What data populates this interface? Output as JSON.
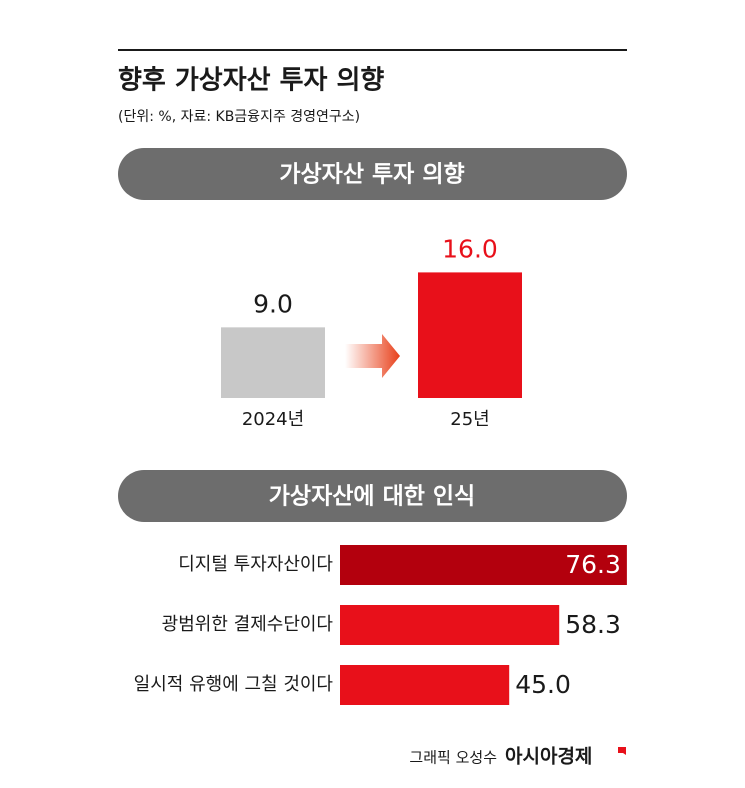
{
  "header": {
    "title": "향후 가상자산 투자 의향",
    "subtitle": "(단위: %, 자료: KB금융지주 경영연구소)"
  },
  "chart_data": [
    {
      "type": "bar",
      "title": "가상자산 투자 의향",
      "categories": [
        "2024년",
        "25년"
      ],
      "values": [
        9.0,
        16.0
      ],
      "value_labels": [
        "9.0",
        "16.0"
      ],
      "colors": [
        "#c8c8c8",
        "#e8101a"
      ],
      "value_label_colors": [
        "#1a1a1a",
        "#e8101a"
      ]
    },
    {
      "type": "hbar",
      "title": "가상자산에 대한 인식",
      "categories": [
        "디지털 투자자산이다",
        "광범위한 결제수단이다",
        "일시적 유행에 그칠 것이다"
      ],
      "values": [
        76.3,
        58.3,
        45.0
      ],
      "value_labels": [
        "76.3",
        "58.3",
        "45.0"
      ],
      "colors": [
        "#b3000d",
        "#e8101a",
        "#e8101a"
      ]
    }
  ],
  "credit": {
    "author": "그래픽 오성수",
    "brand": "아시아경제"
  }
}
